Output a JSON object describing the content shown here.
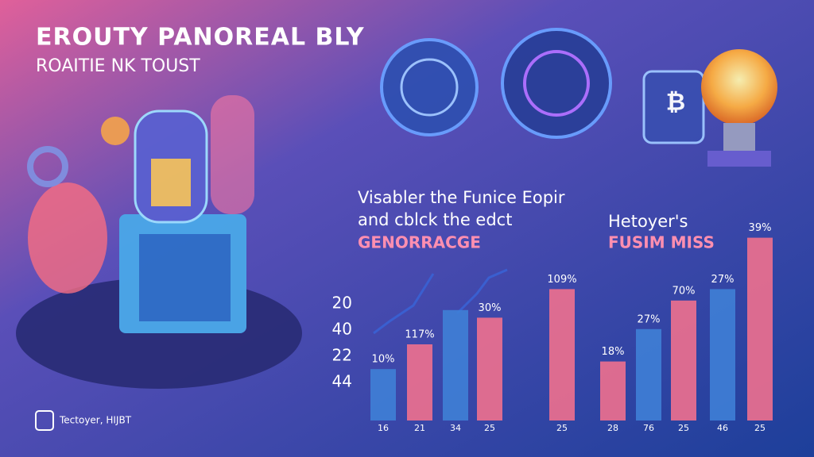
{
  "header": {
    "title": "EROUTY PANOREAL BLY",
    "subtitle": "ROAITIE NK TOUST"
  },
  "left_heading": {
    "line1": "Visabler the Funice Eopir",
    "line2": "and cblck the edct",
    "accent": "GENORRACGE"
  },
  "right_heading": {
    "line1": "Hetoyer's",
    "accent": "FUSIM MISS"
  },
  "axis_texts": [
    "20",
    "40",
    "22",
    "44"
  ],
  "bar_texts": [
    "10%",
    "117%",
    null,
    "30%",
    "109%",
    "18%",
    "27%",
    "70%",
    "27%",
    "39%"
  ],
  "footer": "Tectoyer, HIJBT",
  "chart_data": {
    "type": "bar",
    "categories": [
      "16",
      "21",
      "34",
      "25",
      "25",
      "28",
      "76",
      "25",
      "46",
      "25"
    ],
    "values": [
      27,
      40,
      58,
      54,
      69,
      31,
      48,
      63,
      69,
      96
    ],
    "colors": [
      "#3f7fd6",
      "#f0708e",
      "#3f7fd6",
      "#f0708e",
      "#f0708e",
      "#f0708e",
      "#3f7fd6",
      "#f0708e",
      "#3f7fd6",
      "#f0708e"
    ],
    "ylim": [
      0,
      100
    ]
  }
}
